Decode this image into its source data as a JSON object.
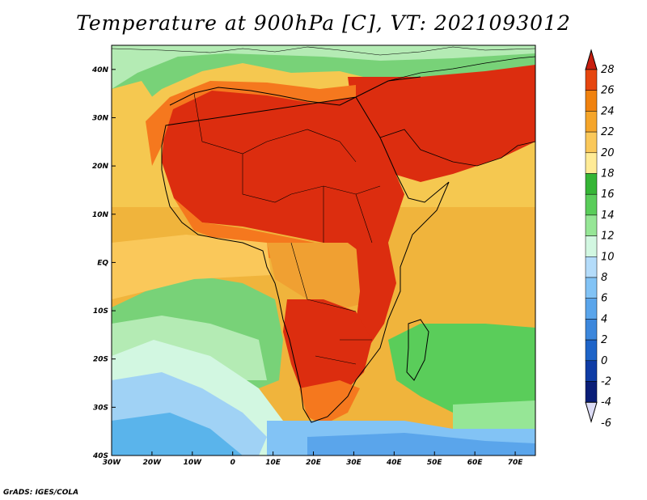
{
  "title": "Temperature at 900hPa [C], VT: 2021093012",
  "credit": "GrADS: IGES/COLA",
  "map": {
    "lon_range": [
      -30,
      75
    ],
    "lat_range": [
      -40,
      45
    ],
    "x_ticks": [
      {
        "lon": -30,
        "label": "30W"
      },
      {
        "lon": -20,
        "label": "20W"
      },
      {
        "lon": -10,
        "label": "10W"
      },
      {
        "lon": 0,
        "label": "0"
      },
      {
        "lon": 10,
        "label": "10E"
      },
      {
        "lon": 20,
        "label": "20E"
      },
      {
        "lon": 30,
        "label": "30E"
      },
      {
        "lon": 40,
        "label": "40E"
      },
      {
        "lon": 50,
        "label": "50E"
      },
      {
        "lon": 60,
        "label": "60E"
      },
      {
        "lon": 70,
        "label": "70E"
      }
    ],
    "y_ticks": [
      {
        "lat": 40,
        "label": "40N"
      },
      {
        "lat": 30,
        "label": "30N"
      },
      {
        "lat": 20,
        "label": "20N"
      },
      {
        "lat": 10,
        "label": "10N"
      },
      {
        "lat": 0,
        "label": "EQ"
      },
      {
        "lat": -10,
        "label": "10S"
      },
      {
        "lat": -20,
        "label": "20S"
      },
      {
        "lat": -30,
        "label": "30S"
      },
      {
        "lat": -40,
        "label": "40S"
      }
    ]
  },
  "colorbar": {
    "levels": [
      28,
      26,
      24,
      22,
      20,
      18,
      16,
      14,
      12,
      10,
      8,
      6,
      4,
      2,
      0,
      -2,
      -4,
      -6
    ],
    "colors": [
      "#c81e0f",
      "#e6460f",
      "#f0820f",
      "#f5a52a",
      "#fac85a",
      "#ffeb96",
      "#35b535",
      "#5acd5a",
      "#96e696",
      "#d2f7e1",
      "#b4dcfa",
      "#82c3f5",
      "#5aa5eb",
      "#3c87dc",
      "#1e64c8",
      "#0f3ca5",
      "#0a1e78",
      "#dcdcf5"
    ],
    "labels": [
      "28",
      "26",
      "24",
      "22",
      "20",
      "18",
      "16",
      "14",
      "12",
      "10",
      "8",
      "6",
      "4",
      "2",
      "0",
      "-2",
      "-4",
      "-6"
    ]
  },
  "field_colors": {
    "ocean_cool": "#f0b43c",
    "warm": "#f5781e",
    "hot": "#dc2d0f",
    "green": "#78d278",
    "light_green": "#b4ebb4",
    "pale": "#e6f5f0",
    "light_blue": "#a0d2f5",
    "mid_blue": "#5ab4eb"
  }
}
